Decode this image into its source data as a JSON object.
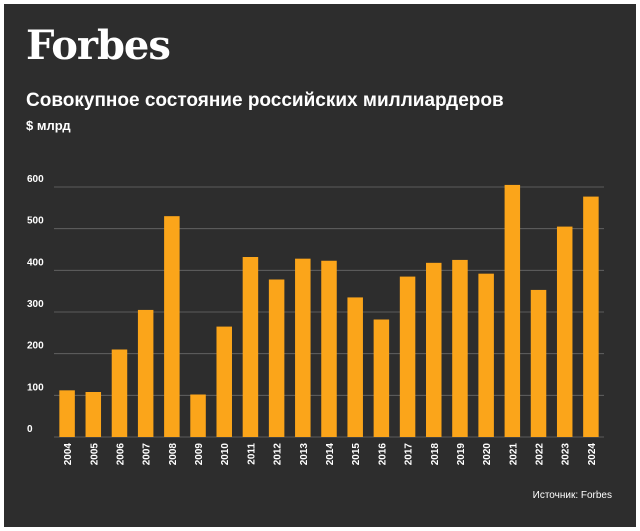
{
  "header": {
    "logo": "Forbes",
    "title": "Совокупное состояние российских миллиардеров",
    "unit": "$ млрд"
  },
  "footer": {
    "source": "Источник: Forbes"
  },
  "colors": {
    "background": "#2d2d2d",
    "bar": "#fba51a",
    "grid": "#6a6a6a",
    "text": "#ffffff"
  },
  "chart_data": {
    "type": "bar",
    "title": "Совокупное состояние российских миллиардеров",
    "ylabel": "$ млрд",
    "xlabel": "",
    "ylim": [
      0,
      600
    ],
    "yticks": [
      "0",
      "100",
      "200",
      "300",
      "400",
      "500",
      "600"
    ],
    "grid": true,
    "categories": [
      "2004",
      "2005",
      "2006",
      "2007",
      "2008",
      "2009",
      "2010",
      "2011",
      "2012",
      "2013",
      "2014",
      "2015",
      "2016",
      "2017",
      "2018",
      "2019",
      "2020",
      "2021",
      "2022",
      "2023",
      "2024"
    ],
    "values": [
      112,
      108,
      210,
      305,
      530,
      102,
      265,
      432,
      378,
      428,
      423,
      335,
      282,
      385,
      418,
      425,
      392,
      605,
      353,
      505,
      577
    ]
  }
}
